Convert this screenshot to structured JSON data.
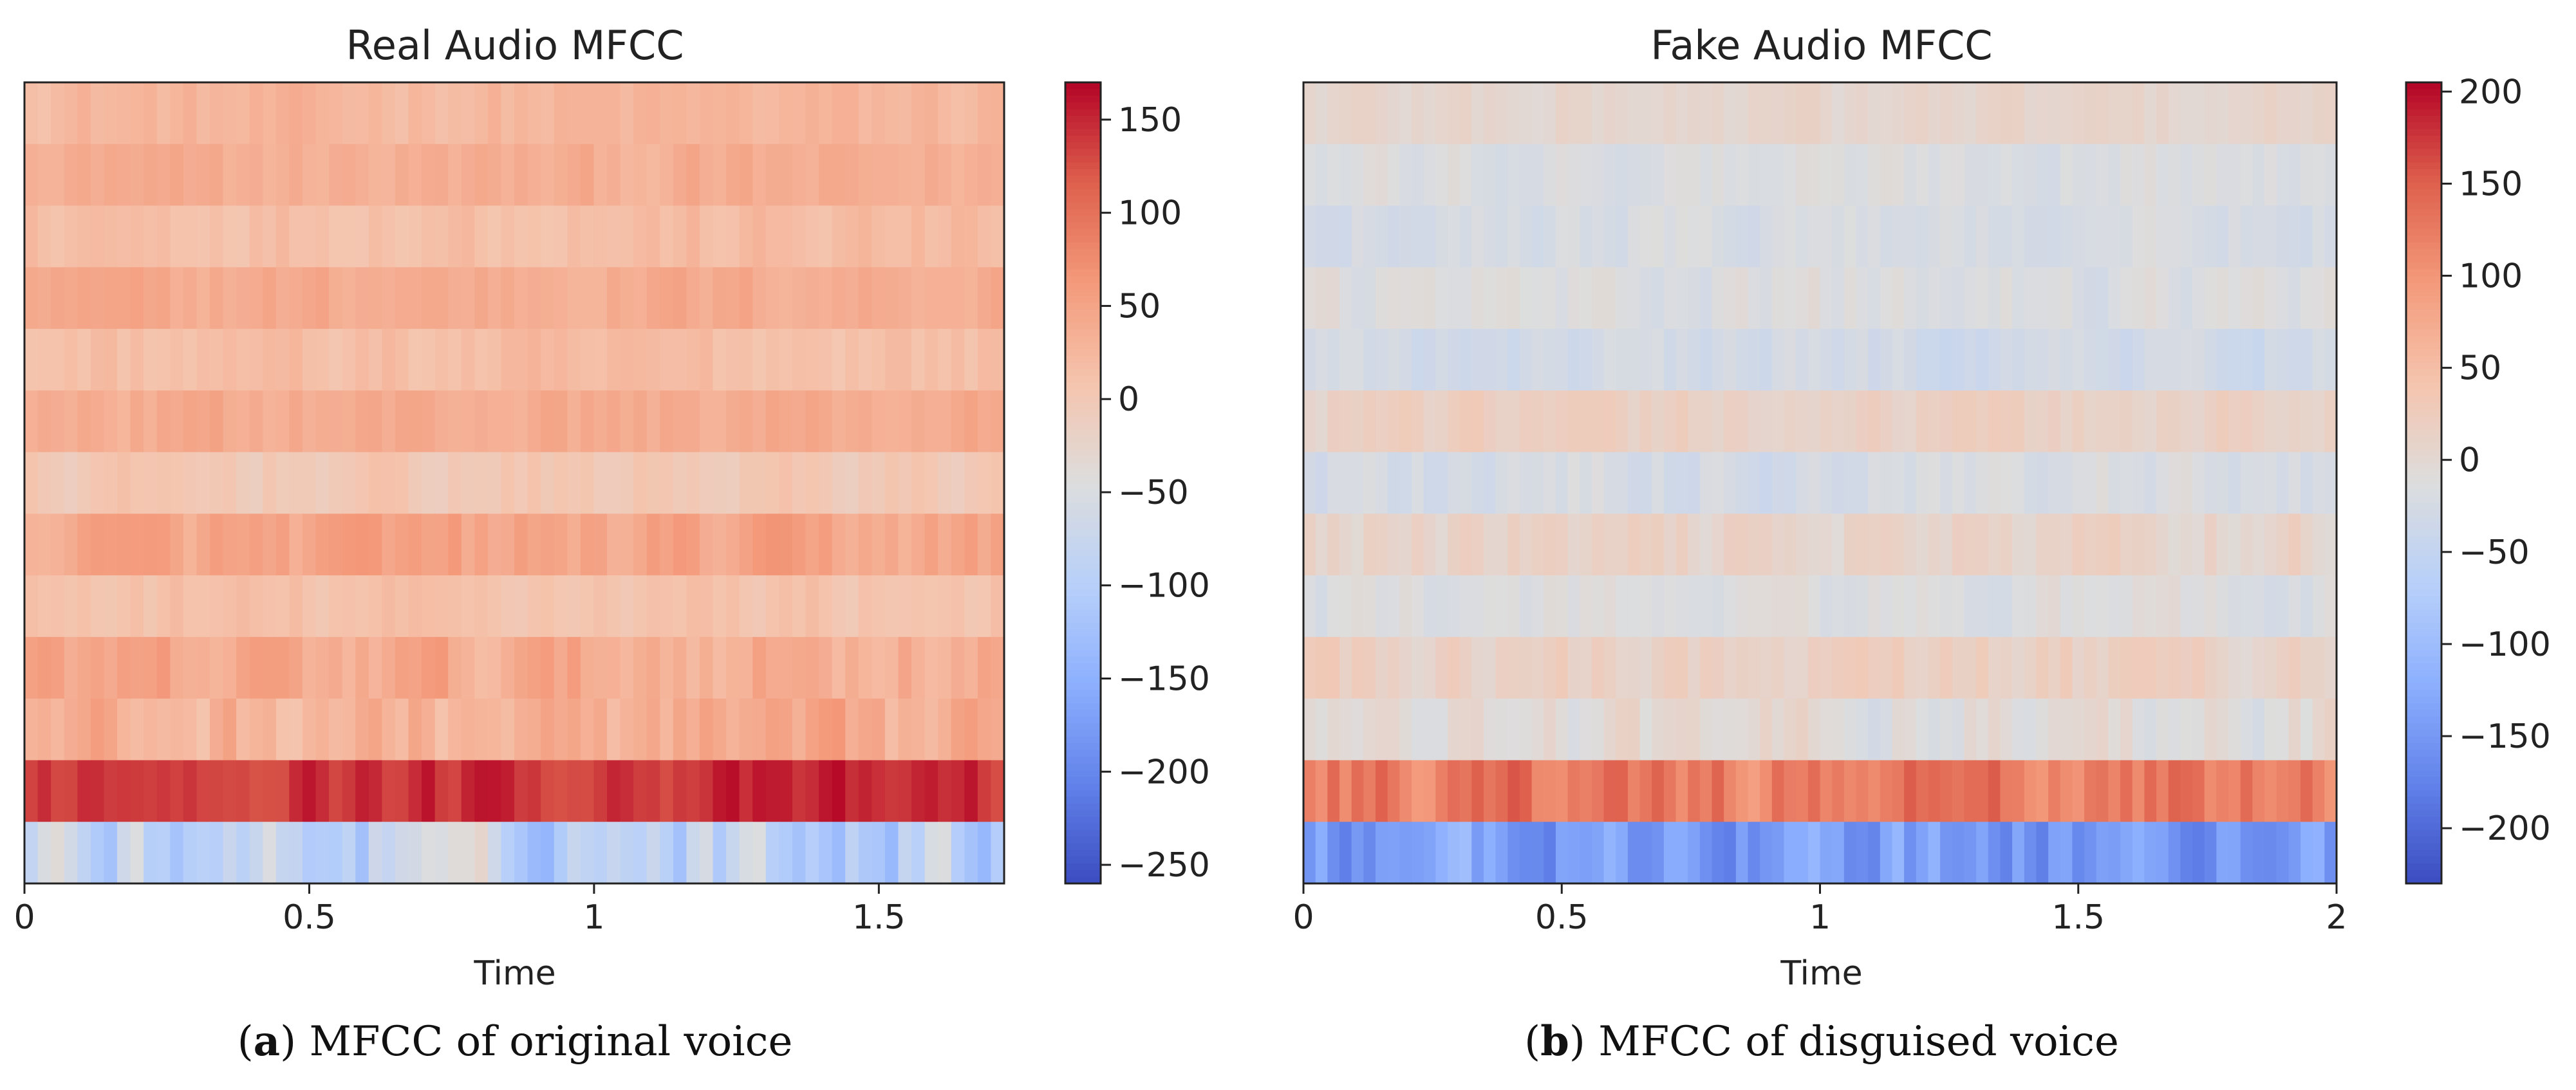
{
  "chart_data": [
    {
      "type": "heatmap",
      "title": "Real Audio MFCC",
      "xlabel": "Time",
      "ylabel": "",
      "xlim": [
        0,
        1.72
      ],
      "x_ticks": [
        0,
        0.5,
        1,
        1.5
      ],
      "x_tick_labels": [
        "0",
        "0.5",
        "1",
        "1.5"
      ],
      "n_coefficients": 13,
      "n_frames": 74,
      "colormap": "coolwarm",
      "colorbar": {
        "vmin": -260,
        "vmax": 170,
        "ticks": [
          150,
          100,
          50,
          0,
          -50,
          -100,
          -150,
          -200,
          -250
        ],
        "tick_labels": [
          "150",
          "100",
          "50",
          "0",
          "−50",
          "−100",
          "−150",
          "−200",
          "−250"
        ]
      },
      "row_means": [
        25,
        35,
        18,
        40,
        15,
        40,
        0,
        45,
        10,
        40,
        30,
        145,
        -85
      ],
      "row_jitter": [
        12,
        12,
        12,
        12,
        12,
        12,
        12,
        18,
        12,
        22,
        25,
        18,
        45
      ],
      "caption_label": "a",
      "caption_text": " MFCC of original voice"
    },
    {
      "type": "heatmap",
      "title": "Fake Audio MFCC",
      "xlabel": "Time",
      "ylabel": "",
      "xlim": [
        0,
        2.0
      ],
      "x_ticks": [
        0,
        0.5,
        1,
        1.5,
        2
      ],
      "x_tick_labels": [
        "0",
        "0.5",
        "1",
        "1.5",
        "2"
      ],
      "n_coefficients": 13,
      "n_frames": 86,
      "colormap": "coolwarm",
      "colorbar": {
        "vmin": -230,
        "vmax": 205,
        "ticks": [
          200,
          150,
          100,
          50,
          0,
          -50,
          -100,
          -150,
          -200
        ],
        "tick_labels": [
          "200",
          "150",
          "100",
          "50",
          "0",
          "−50",
          "−100",
          "−150",
          "−200"
        ]
      },
      "row_means": [
        5,
        -15,
        -20,
        -15,
        -30,
        15,
        -25,
        10,
        -15,
        15,
        -5,
        125,
        -145
      ],
      "row_jitter": [
        10,
        10,
        10,
        12,
        12,
        12,
        15,
        15,
        12,
        15,
        18,
        30,
        35
      ],
      "caption_label": "b",
      "caption_text": " MFCC of disguised voice"
    }
  ]
}
